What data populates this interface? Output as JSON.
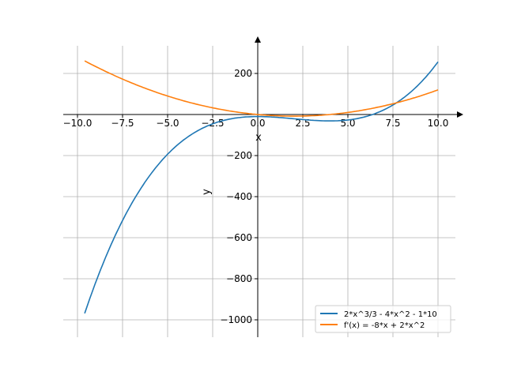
{
  "chart_data": {
    "type": "line",
    "title": "",
    "xlabel": "x",
    "ylabel": "y",
    "xlim": [
      -10.5,
      11
    ],
    "ylim": [
      -1090,
      335
    ],
    "grid": true,
    "xticks": [
      "−10.0",
      "−7.5",
      "−5.0",
      "−2.5",
      "0.0",
      "2.5",
      "5.0",
      "7.5",
      "10.0"
    ],
    "xtick_values": [
      -10,
      -7.5,
      -5,
      -2.5,
      0,
      2.5,
      5,
      7.5,
      10
    ],
    "yticks": [
      "200",
      "−200",
      "−400",
      "−600",
      "−800",
      "−1000"
    ],
    "ytick_values": [
      200,
      -200,
      -400,
      -600,
      -800,
      -1000
    ],
    "x_range": [
      -9.6,
      10
    ],
    "legend_position": "lower-right",
    "series": [
      {
        "name": "2*x^3/3 - 4*x^2 - 1*10",
        "color": "#1f77b4",
        "coefficients": [
          -10,
          0,
          -4,
          0.6667
        ],
        "points": [
          [
            -9.6,
            -968
          ],
          [
            -8,
            -607
          ],
          [
            -6,
            -298
          ],
          [
            -4,
            -117
          ],
          [
            -2,
            -31
          ],
          [
            0,
            -10
          ],
          [
            2,
            -21
          ],
          [
            4,
            -31
          ],
          [
            6,
            -10
          ],
          [
            8,
            75
          ],
          [
            10,
            257
          ]
        ]
      },
      {
        "name": "f'(x) = -8*x + 2*x^2",
        "color": "#ff7f0e",
        "coefficients": [
          0,
          -8,
          2,
          0
        ],
        "points": [
          [
            -9.6,
            261
          ],
          [
            -8,
            192
          ],
          [
            -6,
            120
          ],
          [
            -4,
            64
          ],
          [
            -2,
            24
          ],
          [
            0,
            0
          ],
          [
            2,
            -8
          ],
          [
            4,
            0
          ],
          [
            6,
            24
          ],
          [
            8,
            64
          ],
          [
            10,
            120
          ]
        ]
      }
    ]
  }
}
